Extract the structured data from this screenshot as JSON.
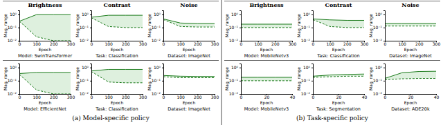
{
  "chart_data": [
    {
      "type": "band",
      "title": "Brightness",
      "xlabel": "Epoch",
      "ylabel": "Mag. range",
      "x": [
        0,
        100,
        200,
        300
      ],
      "series": [
        {
          "values": [
            0.3,
            0.95,
            0.95,
            0.95
          ],
          "color": "#1a7a1a",
          "line_style": "solid"
        },
        {
          "values": [
            0.3,
            0.02,
            0.01,
            0.01
          ],
          "color": "#1a7a1a",
          "line_style": "dashed"
        }
      ],
      "color": "#c8e6c8",
      "log": "y",
      "xlim": [
        0,
        300
      ],
      "xticks": [
        0,
        100,
        200,
        300
      ],
      "ylim": [
        0.01,
        2
      ],
      "yticks": [
        {
          "value": 0.01,
          "label": "10⁻²"
        },
        {
          "value": 0.1,
          "label": "10⁻¹"
        },
        {
          "value": 1,
          "label": "10⁰"
        }
      ],
      "grid": false,
      "annotations": [
        "Model: SwinTransformer"
      ]
    },
    {
      "type": "band",
      "title": "Contrast",
      "xlabel": "Epoch",
      "ylabel": "Mag. range",
      "x": [
        0,
        100,
        200,
        300
      ],
      "series": [
        {
          "values": [
            0.6,
            0.85,
            0.85,
            0.85
          ],
          "color": "#1a7a1a",
          "line_style": "solid"
        },
        {
          "values": [
            0.55,
            0.12,
            0.1,
            0.1
          ],
          "color": "#1a7a1a",
          "line_style": "dashed"
        }
      ],
      "color": "#c8e6c8",
      "log": "y",
      "xlim": [
        0,
        300
      ],
      "xticks": [
        0,
        100,
        200,
        300
      ],
      "ylim": [
        0.01,
        2
      ],
      "yticks": [
        {
          "value": 0.01,
          "label": "10⁻²"
        },
        {
          "value": 0.1,
          "label": "10⁻¹"
        },
        {
          "value": 1,
          "label": "10⁰"
        }
      ],
      "grid": false,
      "annotations": [
        "Task: Classification"
      ]
    },
    {
      "type": "band",
      "title": "Noise",
      "xlabel": "Epoch",
      "ylabel": "Mag. range",
      "x": [
        0,
        100,
        200,
        300
      ],
      "series": [
        {
          "values": [
            0.45,
            0.22,
            0.2,
            0.2
          ],
          "color": "#1a7a1a",
          "line_style": "solid"
        },
        {
          "values": [
            0.4,
            0.12,
            0.11,
            0.11
          ],
          "color": "#1a7a1a",
          "line_style": "dashed"
        }
      ],
      "color": "#c8e6c8",
      "log": "y",
      "xlim": [
        0,
        300
      ],
      "xticks": [
        0,
        100,
        200,
        300
      ],
      "ylim": [
        0.01,
        2
      ],
      "yticks": [
        {
          "value": 0.01,
          "label": "10⁻²"
        },
        {
          "value": 0.1,
          "label": "10⁻¹"
        },
        {
          "value": 1,
          "label": "10⁰"
        }
      ],
      "grid": false,
      "annotations": [
        "Dataset: ImageNet"
      ]
    },
    {
      "type": "band",
      "xlabel": "Epoch",
      "ylabel": "Mag. range",
      "x": [
        0,
        100,
        200,
        300
      ],
      "series": [
        {
          "values": [
            0.35,
            0.42,
            0.42,
            0.42
          ],
          "color": "#1a7a1a",
          "line_style": "solid"
        },
        {
          "values": [
            0.3,
            0.02,
            0.01,
            0.01
          ],
          "color": "#1a7a1a",
          "line_style": "dashed"
        }
      ],
      "color": "#c8e6c8",
      "log": "y",
      "xlim": [
        0,
        300
      ],
      "xticks": [
        0,
        100,
        200,
        300
      ],
      "ylim": [
        0.01,
        2
      ],
      "yticks": [
        {
          "value": 0.01,
          "label": "10⁻²"
        },
        {
          "value": 0.1,
          "label": "10⁻¹"
        },
        {
          "value": 1,
          "label": "10⁰"
        }
      ],
      "grid": false,
      "annotations": [
        "Model: EfficientNet"
      ]
    },
    {
      "type": "band",
      "xlabel": "Epoch",
      "ylabel": "Mag. range",
      "x": [
        0,
        100,
        200,
        300
      ],
      "series": [
        {
          "values": [
            0.55,
            0.72,
            0.72,
            0.72
          ],
          "color": "#1a7a1a",
          "line_style": "solid"
        },
        {
          "values": [
            0.5,
            0.08,
            0.07,
            0.07
          ],
          "color": "#1a7a1a",
          "line_style": "dashed"
        }
      ],
      "color": "#c8e6c8",
      "log": "y",
      "xlim": [
        0,
        300
      ],
      "xticks": [
        0,
        100,
        200,
        300
      ],
      "ylim": [
        0.01,
        2
      ],
      "yticks": [
        {
          "value": 0.01,
          "label": "10⁻²"
        },
        {
          "value": 0.1,
          "label": "10⁻¹"
        },
        {
          "value": 1,
          "label": "10⁰"
        }
      ],
      "grid": false,
      "annotations": [
        "Task: Classification",
        "(a) Model-specific policy"
      ]
    },
    {
      "type": "band",
      "xlabel": "Epoch",
      "ylabel": "Mag. range",
      "x": [
        0,
        100,
        200,
        300
      ],
      "series": [
        {
          "values": [
            0.25,
            0.22,
            0.21,
            0.21
          ],
          "color": "#1a7a1a",
          "line_style": "solid"
        },
        {
          "values": [
            0.2,
            0.17,
            0.17,
            0.17
          ],
          "color": "#1a7a1a",
          "line_style": "dashed"
        }
      ],
      "color": "#c8e6c8",
      "log": "y",
      "xlim": [
        0,
        300
      ],
      "xticks": [
        0,
        100,
        200,
        300
      ],
      "ylim": [
        0.01,
        2
      ],
      "yticks": [
        {
          "value": 0.01,
          "label": "10⁻²"
        },
        {
          "value": 0.1,
          "label": "10⁻¹"
        },
        {
          "value": 1,
          "label": "10⁰"
        }
      ],
      "grid": false,
      "annotations": [
        "Dataset: ImageNet"
      ]
    },
    {
      "type": "band",
      "title": "Brightness",
      "xlabel": "Epoch",
      "ylabel": "Mag. range",
      "x": [
        0,
        100,
        200,
        300
      ],
      "series": [
        {
          "values": [
            0.18,
            0.18,
            0.18,
            0.18
          ],
          "color": "#1a7a1a",
          "line_style": "solid"
        },
        {
          "values": [
            0.1,
            0.1,
            0.1,
            0.1
          ],
          "color": "#1a7a1a",
          "line_style": "dashed"
        }
      ],
      "color": "#c8e6c8",
      "log": "y",
      "xlim": [
        0,
        300
      ],
      "xticks": [
        0,
        100,
        200,
        300
      ],
      "ylim": [
        0.01,
        2
      ],
      "yticks": [
        {
          "value": 0.01,
          "label": "10⁻²"
        },
        {
          "value": 0.1,
          "label": "10⁻¹"
        },
        {
          "value": 1,
          "label": "10⁰"
        }
      ],
      "grid": false,
      "annotations": [
        "Model: MobileNetv3"
      ]
    },
    {
      "type": "band",
      "title": "Contrast",
      "xlabel": "Epoch",
      "ylabel": "Mag. range",
      "x": [
        0,
        100,
        200,
        300
      ],
      "series": [
        {
          "values": [
            0.45,
            0.38,
            0.35,
            0.35
          ],
          "color": "#1a7a1a",
          "line_style": "solid"
        },
        {
          "values": [
            0.4,
            0.12,
            0.1,
            0.1
          ],
          "color": "#1a7a1a",
          "line_style": "dashed"
        }
      ],
      "color": "#c8e6c8",
      "log": "y",
      "xlim": [
        0,
        300
      ],
      "xticks": [
        0,
        100,
        200,
        300
      ],
      "ylim": [
        0.01,
        2
      ],
      "yticks": [
        {
          "value": 0.01,
          "label": "10⁻²"
        },
        {
          "value": 0.1,
          "label": "10⁻¹"
        },
        {
          "value": 1,
          "label": "10⁰"
        }
      ],
      "grid": false,
      "annotations": [
        "Task: Classification"
      ]
    },
    {
      "type": "band",
      "title": "Noise",
      "xlabel": "Epoch",
      "ylabel": "Mag. range",
      "x": [
        0,
        100,
        200,
        300
      ],
      "series": [
        {
          "values": [
            0.2,
            0.2,
            0.2,
            0.2
          ],
          "color": "#1a7a1a",
          "line_style": "solid"
        },
        {
          "values": [
            0.13,
            0.13,
            0.13,
            0.13
          ],
          "color": "#1a7a1a",
          "line_style": "dashed"
        }
      ],
      "color": "#c8e6c8",
      "log": "y",
      "xlim": [
        0,
        300
      ],
      "xticks": [
        0,
        100,
        200,
        300
      ],
      "ylim": [
        0.01,
        2
      ],
      "yticks": [
        {
          "value": 0.01,
          "label": "10⁻²"
        },
        {
          "value": 0.1,
          "label": "10⁻¹"
        },
        {
          "value": 1,
          "label": "10⁰"
        }
      ],
      "grid": false,
      "annotations": [
        "Dataset: ImageNet"
      ]
    },
    {
      "type": "band",
      "xlabel": "Epoch",
      "ylabel": "Mag. range",
      "x": [
        0,
        13.333333333333334,
        26.666666666666668,
        40
      ],
      "series": [
        {
          "values": [
            0.18,
            0.18,
            0.18,
            0.18
          ],
          "color": "#1a7a1a",
          "line_style": "solid"
        },
        {
          "values": [
            0.1,
            0.1,
            0.1,
            0.1
          ],
          "color": "#1a7a1a",
          "line_style": "dashed"
        }
      ],
      "color": "#c8e6c8",
      "log": "y",
      "xlim": [
        0,
        40
      ],
      "xticks": [
        0,
        20,
        40
      ],
      "ylim": [
        0.01,
        2
      ],
      "yticks": [
        {
          "value": 0.01,
          "label": "10⁻²"
        },
        {
          "value": 0.1,
          "label": "10⁻¹"
        },
        {
          "value": 1,
          "label": "10⁰"
        }
      ],
      "grid": false,
      "annotations": [
        "Model: MobileNetv3"
      ]
    },
    {
      "type": "band",
      "xlabel": "Epoch",
      "ylabel": "Mag. range",
      "x": [
        0,
        13.333333333333334,
        26.666666666666668,
        40
      ],
      "series": [
        {
          "values": [
            0.22,
            0.27,
            0.3,
            0.32
          ],
          "color": "#1a7a1a",
          "line_style": "solid"
        },
        {
          "values": [
            0.18,
            0.2,
            0.22,
            0.22
          ],
          "color": "#1a7a1a",
          "line_style": "dashed"
        }
      ],
      "color": "#c8e6c8",
      "log": "y",
      "xlim": [
        0,
        40
      ],
      "xticks": [
        0,
        20,
        40
      ],
      "ylim": [
        0.01,
        2
      ],
      "yticks": [
        {
          "value": 0.01,
          "label": "10⁻²"
        },
        {
          "value": 0.1,
          "label": "10⁻¹"
        },
        {
          "value": 1,
          "label": "10⁰"
        }
      ],
      "grid": false,
      "annotations": [
        "Task: Segmentation",
        "(b) Task-specific policy"
      ]
    },
    {
      "type": "band",
      "xlabel": "Epoch",
      "ylabel": "Mag. range",
      "x": [
        0,
        13.333333333333334,
        26.666666666666668,
        40
      ],
      "series": [
        {
          "values": [
            0.15,
            0.4,
            0.5,
            0.52
          ],
          "color": "#1a7a1a",
          "line_style": "solid"
        },
        {
          "values": [
            0.12,
            0.14,
            0.15,
            0.15
          ],
          "color": "#1a7a1a",
          "line_style": "dashed"
        }
      ],
      "color": "#c8e6c8",
      "log": "y",
      "xlim": [
        0,
        40
      ],
      "xticks": [
        0,
        20,
        40
      ],
      "ylim": [
        0.01,
        2
      ],
      "yticks": [
        {
          "value": 0.01,
          "label": "10⁻²"
        },
        {
          "value": 0.1,
          "label": "10⁻¹"
        },
        {
          "value": 1,
          "label": "10⁰"
        }
      ],
      "grid": false,
      "annotations": [
        "Dataset: ADE20k"
      ]
    }
  ]
}
